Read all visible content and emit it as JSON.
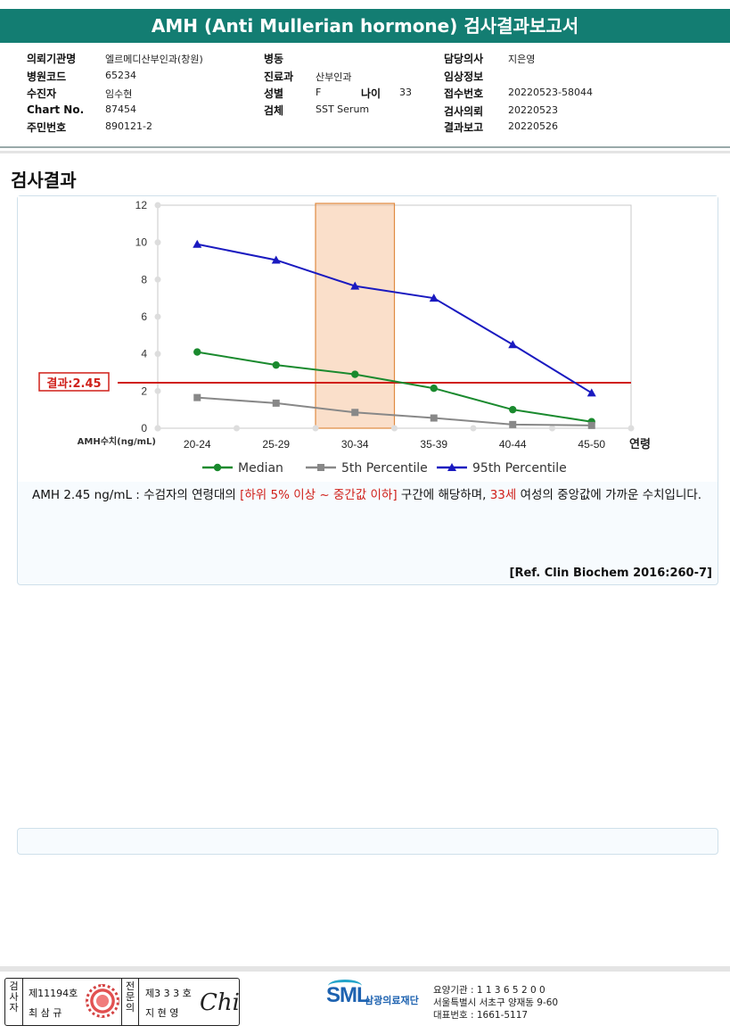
{
  "report": {
    "title": "AMH (Anti Mullerian hormone) 검사결과보고서"
  },
  "info": {
    "institution_label": "의뢰기관명",
    "institution": "엘르메디산부인과(창원)",
    "hospital_code_label": "병원코드",
    "hospital_code": "65234",
    "patient_label": "수진자",
    "patient": "임수현",
    "chart_no_label": "Chart No.",
    "chart_no": "87454",
    "resident_no_label": "주민번호",
    "resident_no": "890121-2",
    "ward_label": "병동",
    "ward": "",
    "department_label": "진료과",
    "department": "산부인과",
    "sex_label": "성별",
    "sex": "F",
    "age_label": "나이",
    "age": "33",
    "specimen_label": "검체",
    "specimen": "SST Serum",
    "doctor_label": "담당의사",
    "doctor": "지은영",
    "clinical_label": "임상정보",
    "clinical": "",
    "receipt_no_label": "접수번호",
    "receipt_no": "20220523-58044",
    "request_date_label": "검사의뢰",
    "request_date": "20220523",
    "report_date_label": "결과보고",
    "report_date": "20220526"
  },
  "section_title": "검사결과",
  "chart_data": {
    "type": "line",
    "categories": [
      "20-24",
      "25-29",
      "30-34",
      "35-39",
      "40-44",
      "45-50"
    ],
    "xlabel": "연령",
    "ylabel": "AMH수치(ng/mL)",
    "ylim": [
      0,
      12
    ],
    "yticks": [
      "0",
      "2",
      "4",
      "6",
      "8",
      "10",
      "12"
    ],
    "grid": false,
    "legend_position": "bottom",
    "series": [
      {
        "name": "Median",
        "values": [
          4.1,
          3.4,
          2.9,
          2.15,
          1.0,
          0.35
        ],
        "color": "#1a8a2e",
        "marker": "circle"
      },
      {
        "name": "5th Percentile",
        "values": [
          1.65,
          1.35,
          0.85,
          0.55,
          0.2,
          0.15
        ],
        "color": "#888888",
        "marker": "square"
      },
      {
        "name": "95th Percentile",
        "values": [
          9.9,
          9.05,
          7.65,
          7.0,
          4.5,
          1.9
        ],
        "color": "#1a1ac0",
        "marker": "triangle"
      }
    ],
    "highlight_category": "30-34",
    "result_value": 2.45,
    "result_label": "결과:2.45",
    "result_color": "#d0201a",
    "highlight_color": "#f5b98a"
  },
  "description": {
    "part1": "AMH  2.45 ng/mL : 수검자의 연령대의 ",
    "range_text": "[하위 5% 이상 ~ 중간값 이하]",
    "part2": "  구간에 해당하며, ",
    "age_text": "33세",
    "part3": " 여성의 중앙값에 가까운 수치입니다."
  },
  "reference": "[Ref. Clin Biochem 2016:260-7]",
  "footer": {
    "tester_label": "검사자",
    "tester_no": "제11194호",
    "tester_name": "최 삼 규",
    "doctor_label": "전문의",
    "doctor_no": "제3 3 3 호",
    "doctor_name": "지 현 영",
    "signature": "Chi",
    "logo": "SML",
    "company": "삼광의료재단",
    "inst_no": "요양기관 : 1 1 3 6 5 2 0 0",
    "address": "서울특별시 서초구 양재동 9-60",
    "phone": "대표번호 : 1661-5117"
  }
}
